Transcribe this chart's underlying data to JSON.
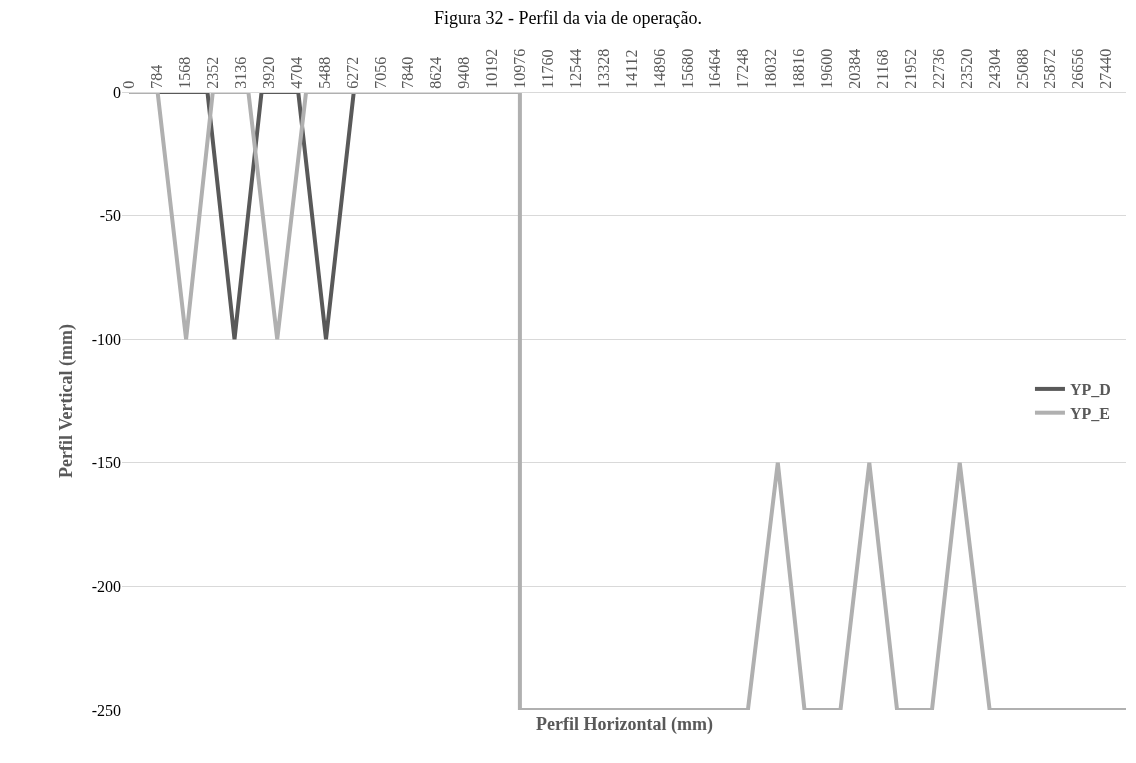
{
  "chart_data": {
    "type": "line",
    "title": "Figura 32 - Perfil da via de operação.",
    "xlabel": "Perfil Horizontal (mm)",
    "ylabel": "Perfil Vertical (mm)",
    "xlim": [
      -200,
      28000
    ],
    "xticks": [
      0,
      784,
      1568,
      2352,
      3136,
      3920,
      4704,
      5488,
      6272,
      7056,
      7840,
      8624,
      9408,
      10192,
      10976,
      11760,
      12544,
      13328,
      14112,
      14896,
      15680,
      16464,
      17248,
      18032,
      18816,
      19600,
      20384,
      21168,
      21952,
      22736,
      23520,
      24304,
      25088,
      25872,
      26656,
      27440
    ],
    "ylim": [
      -250,
      0
    ],
    "yticks": [
      -250,
      -200,
      -150,
      -100,
      -50,
      0
    ],
    "grid": "y",
    "legend": "right",
    "marker": "none",
    "line_style": "solid",
    "series": [
      {
        "name": "YP_D",
        "color": "#595959",
        "x": [
          0,
          2200,
          2960,
          3720,
          4750,
          5530,
          6310
        ],
        "values": [
          0,
          0,
          -100,
          0,
          0,
          -100,
          0
        ]
      },
      {
        "name": "YP_E",
        "color": "#b0b0b0",
        "x": [
          0,
          800,
          1600,
          2350,
          3350,
          4160,
          4970,
          10976,
          10976,
          17380,
          18220,
          18970,
          19980,
          20790,
          21570,
          22550,
          23330,
          24170,
          28000
        ],
        "values": [
          0,
          0,
          -100,
          0,
          0,
          -100,
          0,
          0,
          -250,
          -250,
          -150,
          -250,
          -250,
          -150,
          -250,
          -250,
          -150,
          -250,
          -250
        ]
      }
    ]
  }
}
